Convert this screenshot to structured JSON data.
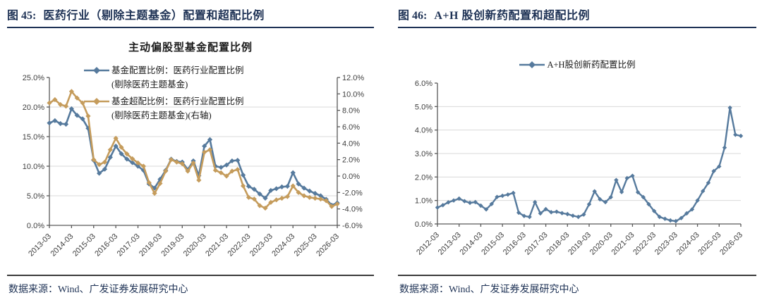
{
  "figures": [
    {
      "label": "图 45:",
      "title": "医药行业（剔除主题基金）配置和超配比例",
      "source": "数据来源：Wind、广发证券发展研究中心"
    },
    {
      "label": "图 46:",
      "title": "A+H 股创新药配置和超配比例",
      "source": "数据来源：Wind、广发证券发展研究中心"
    }
  ],
  "colors": {
    "accent_navy": "#1e3255",
    "series_blue": "#567a9d",
    "series_tan": "#c59c5c",
    "grid": "#d9d9d9",
    "axis": "#595959",
    "tick_text": "#404040"
  },
  "chart_data": [
    {
      "type": "line",
      "title": "主动偏股型基金配置比例",
      "x_frequency": "quarterly",
      "x_ticks": [
        "2013-03",
        "2014-03",
        "2015-03",
        "2016-03",
        "2017-03",
        "2018-03",
        "2019-03",
        "2020-03",
        "2021-03",
        "2022-03",
        "2023-03",
        "2024-03",
        "2025-03",
        "2026-03"
      ],
      "axis_left": {
        "min": 0,
        "max": 25,
        "ticks": [
          {
            "v": 25,
            "label": "25.0%"
          },
          {
            "v": 20,
            "label": "20.0%"
          },
          {
            "v": 15,
            "label": "15.0%"
          },
          {
            "v": 10,
            "label": "10.0%"
          },
          {
            "v": 5,
            "label": "5.0%"
          },
          {
            "v": 0,
            "label": "0.0%"
          }
        ],
        "grid": [
          20,
          15,
          10,
          5
        ]
      },
      "axis_right": {
        "min": -6,
        "max": 12,
        "ticks": [
          {
            "v": 12,
            "label": "12.0%"
          },
          {
            "v": 10,
            "label": "10.0%"
          },
          {
            "v": 8,
            "label": "8.0%"
          },
          {
            "v": 6,
            "label": "6.0%"
          },
          {
            "v": 4,
            "label": "4.0%"
          },
          {
            "v": 2,
            "label": "2.0%"
          },
          {
            "v": 0,
            "label": "0.0%"
          },
          {
            "v": -2,
            "label": "-2.0%"
          },
          {
            "v": -4,
            "label": "-4.0%"
          },
          {
            "v": -6,
            "label": "-6.0%"
          }
        ]
      },
      "series": [
        {
          "label_line1": "基金配置比例：医药行业配置比例",
          "label_line2": "(剔除医药主题基金)",
          "axis": "left",
          "color": "#567a9d",
          "unit": "%",
          "values": [
            17.3,
            17.7,
            17.2,
            17.1,
            19.7,
            18.6,
            18.0,
            16.4,
            11.0,
            8.8,
            9.5,
            11.5,
            13.4,
            12.1,
            11.2,
            10.6,
            10.0,
            9.3,
            7.0,
            6.3,
            7.8,
            9.3,
            11.2,
            10.8,
            10.7,
            9.4,
            10.9,
            8.4,
            13.4,
            14.5,
            10.0,
            9.8,
            10.2,
            10.9,
            11.0,
            8.5,
            6.6,
            6.1,
            5.3,
            4.6,
            5.9,
            6.2,
            6.5,
            6.6,
            8.9,
            7.0,
            6.3,
            5.8,
            5.4,
            5.0,
            4.4,
            3.4,
            3.8
          ]
        },
        {
          "label_line1": "基金超配比例：医药行业配置比例",
          "label_line2": "(剔除医药主题基金)(右轴)",
          "axis": "right",
          "color": "#c59c5c",
          "unit": "%",
          "values": [
            8.9,
            9.3,
            8.7,
            8.5,
            10.3,
            9.5,
            8.9,
            7.3,
            2.0,
            1.4,
            1.7,
            3.2,
            4.6,
            3.5,
            2.7,
            2.1,
            1.6,
            1.2,
            -0.8,
            -2.1,
            -0.9,
            0.6,
            2.0,
            1.7,
            1.5,
            0.6,
            1.6,
            -0.5,
            2.9,
            3.2,
            0.7,
            0.4,
            0.0,
            0.6,
            0.8,
            -1.2,
            -2.6,
            -2.8,
            -3.6,
            -3.9,
            -3.2,
            -2.9,
            -2.7,
            -2.5,
            -1.2,
            -2.0,
            -2.4,
            -2.6,
            -2.7,
            -2.8,
            -3.0,
            -3.7,
            -3.4
          ]
        }
      ]
    },
    {
      "type": "line",
      "title": "",
      "x_frequency": "quarterly",
      "x_ticks": [
        "2012-03",
        "2013-03",
        "2014-03",
        "2015-03",
        "2016-03",
        "2017-03",
        "2018-03",
        "2019-03",
        "2020-03",
        "2021-03",
        "2022-03",
        "2023-03",
        "2024-03",
        "2025-03",
        "2026-03"
      ],
      "axis_left": {
        "min": 0,
        "max": 6,
        "ticks": [
          {
            "v": 6,
            "label": "6.0%"
          },
          {
            "v": 5,
            "label": "5.0%"
          },
          {
            "v": 4,
            "label": "4.0%"
          },
          {
            "v": 3,
            "label": "3.0%"
          },
          {
            "v": 2,
            "label": "2.0%"
          },
          {
            "v": 1,
            "label": "1.0%"
          },
          {
            "v": 0,
            "label": "0.0%"
          }
        ],
        "grid": [
          5,
          4,
          3,
          2,
          1
        ]
      },
      "series": [
        {
          "label_line1": "A+H股创新药配置比例",
          "label_line2": "",
          "axis": "left",
          "color": "#567a9d",
          "unit": "%",
          "values": [
            0.7,
            0.8,
            0.92,
            1.0,
            1.08,
            0.97,
            0.9,
            0.93,
            0.78,
            0.62,
            0.85,
            1.15,
            1.2,
            1.25,
            1.32,
            0.48,
            0.34,
            0.3,
            0.93,
            0.45,
            0.63,
            0.5,
            0.52,
            0.46,
            0.42,
            0.35,
            0.3,
            0.4,
            0.84,
            1.39,
            1.05,
            0.93,
            1.14,
            1.87,
            1.36,
            1.95,
            2.05,
            1.35,
            1.14,
            0.84,
            0.55,
            0.3,
            0.22,
            0.15,
            0.12,
            0.25,
            0.45,
            0.62,
            1.0,
            1.4,
            1.75,
            2.25,
            2.45,
            3.25,
            4.95,
            3.8,
            3.75
          ]
        }
      ]
    }
  ]
}
